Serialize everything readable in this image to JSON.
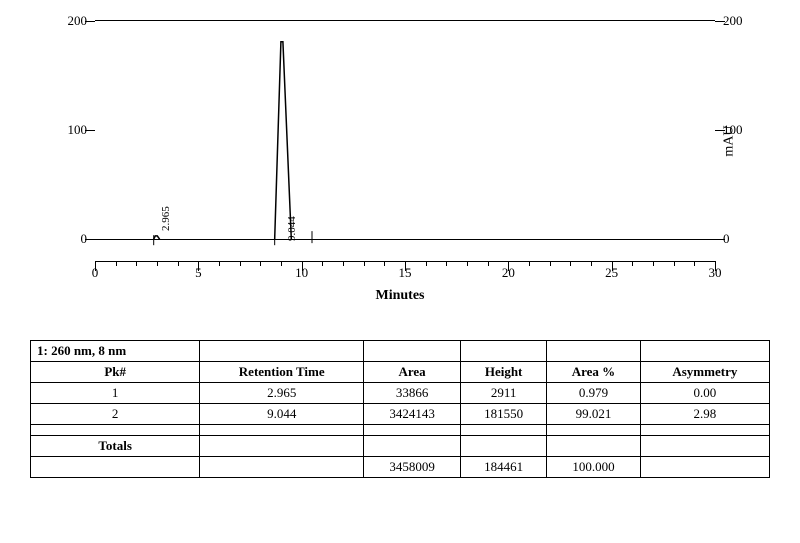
{
  "chromatogram": {
    "type": "line",
    "xlabel": "Minutes",
    "ylabel_right": "mAU",
    "xlim": [
      0,
      30
    ],
    "ylim": [
      -20,
      200
    ],
    "xtick_major_step": 5,
    "ytick_major_step": 100,
    "y_left_ticks": [
      0,
      100,
      200
    ],
    "y_right_ticks": [
      0,
      100,
      200
    ],
    "x_ticks": [
      0,
      5,
      10,
      15,
      20,
      25,
      30
    ],
    "baseline_y": 0,
    "line_color": "#000000",
    "line_width": 1.5,
    "background_color": "#ffffff",
    "border_color": "#000000",
    "label_fontsize": 13,
    "axis_title_fontsize": 14,
    "peaks": [
      {
        "rt": 2.965,
        "height_mau": 3,
        "width_min": 0.25,
        "label": "2.965"
      },
      {
        "rt": 9.044,
        "height_mau": 181,
        "width_min": 0.7,
        "label": "9.044",
        "tail_marker_at": 10.5
      }
    ]
  },
  "table": {
    "title": "1: 260 nm, 8 nm",
    "columns": [
      "Pk#",
      "Retention Time",
      "Area",
      "Height",
      "Area %",
      "Asymmetry"
    ],
    "rows": [
      [
        "1",
        "2.965",
        "33866",
        "2911",
        "0.979",
        "0.00"
      ],
      [
        "2",
        "9.044",
        "3424143",
        "181550",
        "99.021",
        "2.98"
      ]
    ],
    "totals_label": "Totals",
    "totals_row": [
      "",
      "",
      "3458009",
      "184461",
      "100.000",
      ""
    ],
    "border_color": "#000000",
    "header_font_weight": "bold",
    "cell_fontsize": 13
  }
}
